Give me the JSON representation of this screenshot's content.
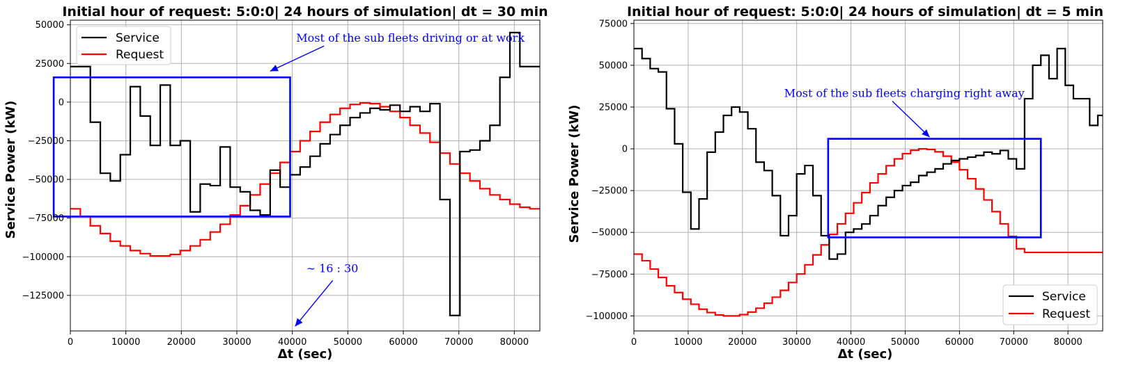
{
  "chart_data": [
    {
      "type": "line",
      "title": "Initial hour of request: 5:0:0| 24 hours of simulation| dt = 30 min",
      "xlabel": "Δt (sec)",
      "ylabel": "Service Power (kW)",
      "xlim": [
        0,
        84600
      ],
      "ylim": [
        -148000,
        53000
      ],
      "xticks": [
        0,
        10000,
        20000,
        30000,
        40000,
        50000,
        60000,
        70000,
        80000
      ],
      "yticks": [
        50000,
        25000,
        0,
        -25000,
        -50000,
        -75000,
        -100000,
        -125000
      ],
      "ytick_labels": [
        "50000",
        "25000",
        "0",
        "−25000",
        "−50000",
        "−75000",
        "−100000",
        "−125000"
      ],
      "grid": true,
      "legend_position": "upper-left",
      "step": true,
      "series": [
        {
          "name": "Service",
          "color": "#000000",
          "x": [
            0,
            1800,
            3600,
            5400,
            7200,
            9000,
            10800,
            12600,
            14400,
            16200,
            18000,
            19800,
            21600,
            23400,
            25200,
            27000,
            28800,
            30600,
            32400,
            34200,
            36000,
            37800,
            39600,
            41400,
            43200,
            45000,
            46800,
            48600,
            50400,
            52200,
            54000,
            55800,
            57600,
            59400,
            61200,
            63000,
            64800,
            66600,
            68400,
            70200,
            72000,
            73800,
            75600,
            77400,
            79200,
            81000,
            82800
          ],
          "y": [
            23000,
            23000,
            -13000,
            -46000,
            -51000,
            -34000,
            10000,
            -9000,
            -28000,
            11000,
            -28000,
            -25000,
            -71000,
            -53000,
            -54000,
            -29000,
            -55000,
            -58000,
            -70000,
            -73000,
            -44000,
            -55000,
            -47000,
            -42000,
            -35000,
            -27000,
            -21000,
            -15000,
            -10000,
            -7000,
            -4000,
            -5000,
            -2000,
            -6000,
            -3000,
            -6000,
            -1000,
            -63000,
            -138000,
            -32000,
            -31000,
            -25000,
            -15000,
            16000,
            45000,
            23000,
            23000
          ]
        },
        {
          "name": "Request",
          "color": "#ff0000",
          "x": [
            0,
            1800,
            3600,
            5400,
            7200,
            9000,
            10800,
            12600,
            14400,
            16200,
            18000,
            19800,
            21600,
            23400,
            25200,
            27000,
            28800,
            30600,
            32400,
            34200,
            36000,
            37800,
            39600,
            41400,
            43200,
            45000,
            46800,
            48600,
            50400,
            52200,
            54000,
            55800,
            57600,
            59400,
            61200,
            63000,
            64800,
            66600,
            68400,
            70200,
            72000,
            73800,
            75600,
            77400,
            79200,
            81000,
            82800
          ],
          "y": [
            -69000,
            -74000,
            -80000,
            -85000,
            -90000,
            -93000,
            -96000,
            -98000,
            -99500,
            -99500,
            -98500,
            -96000,
            -93000,
            -89000,
            -84000,
            -79000,
            -73000,
            -67000,
            -60000,
            -53000,
            -46000,
            -39000,
            -32000,
            -25000,
            -19000,
            -13000,
            -8000,
            -4000,
            -1500,
            -500,
            -1000,
            -3000,
            -6000,
            -10000,
            -15000,
            -20000,
            -26000,
            -33000,
            -40000,
            -46000,
            -51000,
            -56000,
            -60000,
            -63000,
            -66000,
            -68000,
            -69000
          ]
        }
      ],
      "highlight_box": {
        "x": [
          -3000,
          39600
        ],
        "y": [
          -74000,
          16000
        ],
        "color": "#0000ff"
      },
      "annotations": [
        {
          "text": "Most of the sub fleets driving or at work",
          "x": 40700,
          "y": 39000,
          "arrow_to": [
            36000,
            20000
          ]
        },
        {
          "text": "∼ 16 : 30",
          "x": 42500,
          "y": -110000,
          "arrow_to": [
            40500,
            -145000
          ]
        }
      ]
    },
    {
      "type": "line",
      "title": "Initial hour of request: 5:0:0| 24 hours of simulation| dt = 5 min",
      "xlabel": "Δt (sec)",
      "ylabel": "Service Power (kW)",
      "xlim": [
        0,
        86400
      ],
      "ylim": [
        -109000,
        77000
      ],
      "xticks": [
        0,
        10000,
        20000,
        30000,
        40000,
        50000,
        60000,
        70000,
        80000
      ],
      "yticks": [
        75000,
        50000,
        25000,
        0,
        -25000,
        -50000,
        -75000,
        -100000
      ],
      "ytick_labels": [
        "75000",
        "50000",
        "25000",
        "0",
        "−25000",
        "−50000",
        "−75000",
        "−100000"
      ],
      "grid": true,
      "legend_position": "lower-right",
      "step": true,
      "series": [
        {
          "name": "Service",
          "color": "#000000",
          "x": [
            0,
            1500,
            3000,
            4500,
            6000,
            7500,
            9000,
            10500,
            12000,
            13500,
            15000,
            16500,
            18000,
            19500,
            21000,
            22500,
            24000,
            25500,
            27000,
            28500,
            30000,
            31500,
            33000,
            34500,
            36000,
            37500,
            39000,
            40500,
            42000,
            43500,
            45000,
            46500,
            48000,
            49500,
            51000,
            52500,
            54000,
            55500,
            57000,
            58500,
            60000,
            61500,
            63000,
            64500,
            66000,
            67500,
            69000,
            70500,
            72000,
            73500,
            75000,
            76500,
            78000,
            79500,
            81000,
            82500,
            84000,
            85500
          ],
          "y": [
            60000,
            54000,
            48000,
            46000,
            24000,
            3000,
            -26000,
            -48000,
            -30000,
            -2000,
            10000,
            20000,
            25000,
            22000,
            12000,
            -8000,
            -13000,
            -28000,
            -52000,
            -40000,
            -15000,
            -10000,
            -28000,
            -52000,
            -66000,
            -63000,
            -50000,
            -48000,
            -45000,
            -40000,
            -34000,
            -29000,
            -25000,
            -22000,
            -20000,
            -16000,
            -14000,
            -12000,
            -9000,
            -7000,
            -6000,
            -5000,
            -4000,
            -2000,
            -3000,
            -1000,
            -6000,
            -12000,
            30000,
            50000,
            56000,
            42000,
            60000,
            38000,
            30000,
            30000,
            14000,
            20000
          ]
        },
        {
          "name": "Request",
          "color": "#ff0000",
          "x": [
            0,
            1500,
            3000,
            4500,
            6000,
            7500,
            9000,
            10500,
            12000,
            13500,
            15000,
            16500,
            18000,
            19500,
            21000,
            22500,
            24000,
            25500,
            27000,
            28500,
            30000,
            31500,
            33000,
            34500,
            36000,
            37500,
            39000,
            40500,
            42000,
            43500,
            45000,
            46500,
            48000,
            49500,
            51000,
            52500,
            54000,
            55500,
            57000,
            58500,
            60000,
            61500,
            63000,
            64500,
            66000,
            67500,
            69000,
            70500,
            72000,
            73500,
            75000,
            76500,
            78000,
            79500,
            81000,
            82500,
            84000,
            85500
          ],
          "y": [
            -63000,
            -67000,
            -72000,
            -77000,
            -82000,
            -86000,
            -90000,
            -93000,
            -96000,
            -98000,
            -99400,
            -100000,
            -100000,
            -99200,
            -97700,
            -95400,
            -92400,
            -88800,
            -84700,
            -80000,
            -74900,
            -69400,
            -63500,
            -57500,
            -51200,
            -44900,
            -38600,
            -32300,
            -26200,
            -20400,
            -15000,
            -10100,
            -6000,
            -2900,
            -800,
            0,
            -400,
            -1800,
            -4400,
            -8000,
            -12500,
            -17900,
            -24000,
            -30600,
            -37600,
            -44900,
            -52400,
            -59800,
            -62000,
            -62000,
            -62000,
            -62000,
            -62000,
            -62000,
            -62000,
            -62000,
            -62000,
            -62000
          ]
        }
      ],
      "highlight_box": {
        "x": [
          35800,
          75000
        ],
        "y": [
          -53000,
          6000
        ],
        "color": "#0000ff"
      },
      "annotations": [
        {
          "text": "Most of the sub fleets charging right away",
          "x": 27700,
          "y": 31000,
          "arrow_to": [
            54500,
            7000
          ]
        }
      ]
    }
  ]
}
